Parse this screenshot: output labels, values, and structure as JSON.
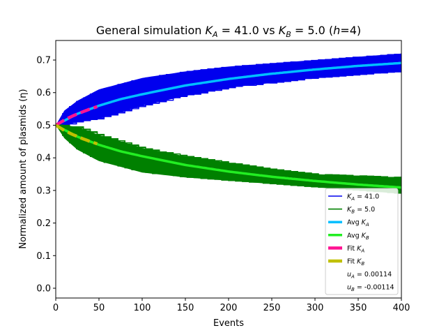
{
  "chart_data": {
    "type": "line",
    "title": "General simulation K_A = 41.0 vs K_B = 5.0 (h=4)",
    "title_parts": {
      "prefix": "General simulation ",
      "ka_sym": "K",
      "ka_sub": "A",
      "ka_val": " = 41.0 vs ",
      "kb_sym": "K",
      "kb_sub": "B",
      "kb_val": " = 5.0 (",
      "h_sym": "h",
      "h_val": "=4)"
    },
    "xlabel": "Events",
    "ylabel": "Normalized amount of plasmids (η)",
    "xlim": [
      0,
      400
    ],
    "ylim": [
      -0.03,
      0.76
    ],
    "xticks": [
      0,
      50,
      100,
      150,
      200,
      250,
      300,
      350,
      400
    ],
    "yticks": [
      0.0,
      0.1,
      0.2,
      0.3,
      0.4,
      0.5,
      0.6,
      0.7
    ],
    "grid": false,
    "legend_position": "lower right",
    "colors": {
      "runs_a": "#0000ee",
      "runs_b": "#008000",
      "avg_a": "#00bfff",
      "avg_b": "#22ee22",
      "fit_a": "#ff1493",
      "fit_b": "#c0c000"
    },
    "series": [
      {
        "name": "K_A = 41.0",
        "kind": "simulation runs",
        "x": [
          0,
          10,
          25,
          50,
          100,
          150,
          200,
          250,
          300,
          350,
          400
        ],
        "y_low": [
          0.5,
          0.5,
          0.51,
          0.52,
          0.56,
          0.59,
          0.615,
          0.63,
          0.645,
          0.655,
          0.665
        ],
        "y_high": [
          0.5,
          0.545,
          0.575,
          0.61,
          0.645,
          0.665,
          0.68,
          0.69,
          0.7,
          0.71,
          0.72
        ]
      },
      {
        "name": "K_B = 5.0",
        "kind": "simulation runs",
        "x": [
          0,
          10,
          25,
          50,
          100,
          150,
          200,
          250,
          300,
          350,
          400
        ],
        "y_low": [
          0.5,
          0.46,
          0.425,
          0.39,
          0.355,
          0.34,
          0.33,
          0.32,
          0.31,
          0.3,
          0.29
        ],
        "y_high": [
          0.5,
          0.5,
          0.495,
          0.47,
          0.43,
          0.405,
          0.385,
          0.365,
          0.35,
          0.345,
          0.34
        ]
      },
      {
        "name": "Avg K_A",
        "x": [
          0,
          25,
          50,
          75,
          100,
          150,
          200,
          250,
          300,
          350,
          400
        ],
        "y": [
          0.5,
          0.535,
          0.56,
          0.58,
          0.595,
          0.622,
          0.642,
          0.658,
          0.671,
          0.682,
          0.691
        ]
      },
      {
        "name": "Avg K_B",
        "x": [
          0,
          25,
          50,
          75,
          100,
          150,
          200,
          250,
          300,
          350,
          400
        ],
        "y": [
          0.5,
          0.465,
          0.44,
          0.42,
          0.405,
          0.378,
          0.358,
          0.342,
          0.329,
          0.318,
          0.309
        ]
      },
      {
        "name": "Fit K_A",
        "x": [
          0,
          10,
          20,
          30,
          40,
          48
        ],
        "y": [
          0.5,
          0.516,
          0.529,
          0.54,
          0.55,
          0.557
        ]
      },
      {
        "name": "Fit K_B",
        "x": [
          0,
          10,
          20,
          30,
          40,
          48
        ],
        "y": [
          0.5,
          0.484,
          0.471,
          0.46,
          0.45,
          0.443
        ]
      }
    ],
    "legend": [
      {
        "key": "ka",
        "sym": "K",
        "sub": "A",
        "rest": " = 41.0",
        "style": "runs_a"
      },
      {
        "key": "kb",
        "sym": "K",
        "sub": "B",
        "rest": " = 5.0",
        "style": "runs_b"
      },
      {
        "key": "avg_a",
        "pre": "Avg ",
        "sym": "K",
        "sub": "A",
        "rest": "",
        "style": "avg_a"
      },
      {
        "key": "avg_b",
        "pre": "Avg ",
        "sym": "K",
        "sub": "B",
        "rest": "",
        "style": "avg_b"
      },
      {
        "key": "fit_a",
        "pre": "Fit ",
        "sym": "K",
        "sub": "A",
        "rest": "",
        "style": "fit_a"
      },
      {
        "key": "fit_b",
        "pre": "Fit ",
        "sym": "K",
        "sub": "B",
        "rest": "",
        "style": "fit_b"
      },
      {
        "key": "ua",
        "sym": "u",
        "sub": "A",
        "rest": " = 0.00114",
        "style": "none"
      },
      {
        "key": "ub",
        "sym": "u",
        "sub": "B",
        "rest": " = -0.00114",
        "style": "none"
      }
    ]
  }
}
